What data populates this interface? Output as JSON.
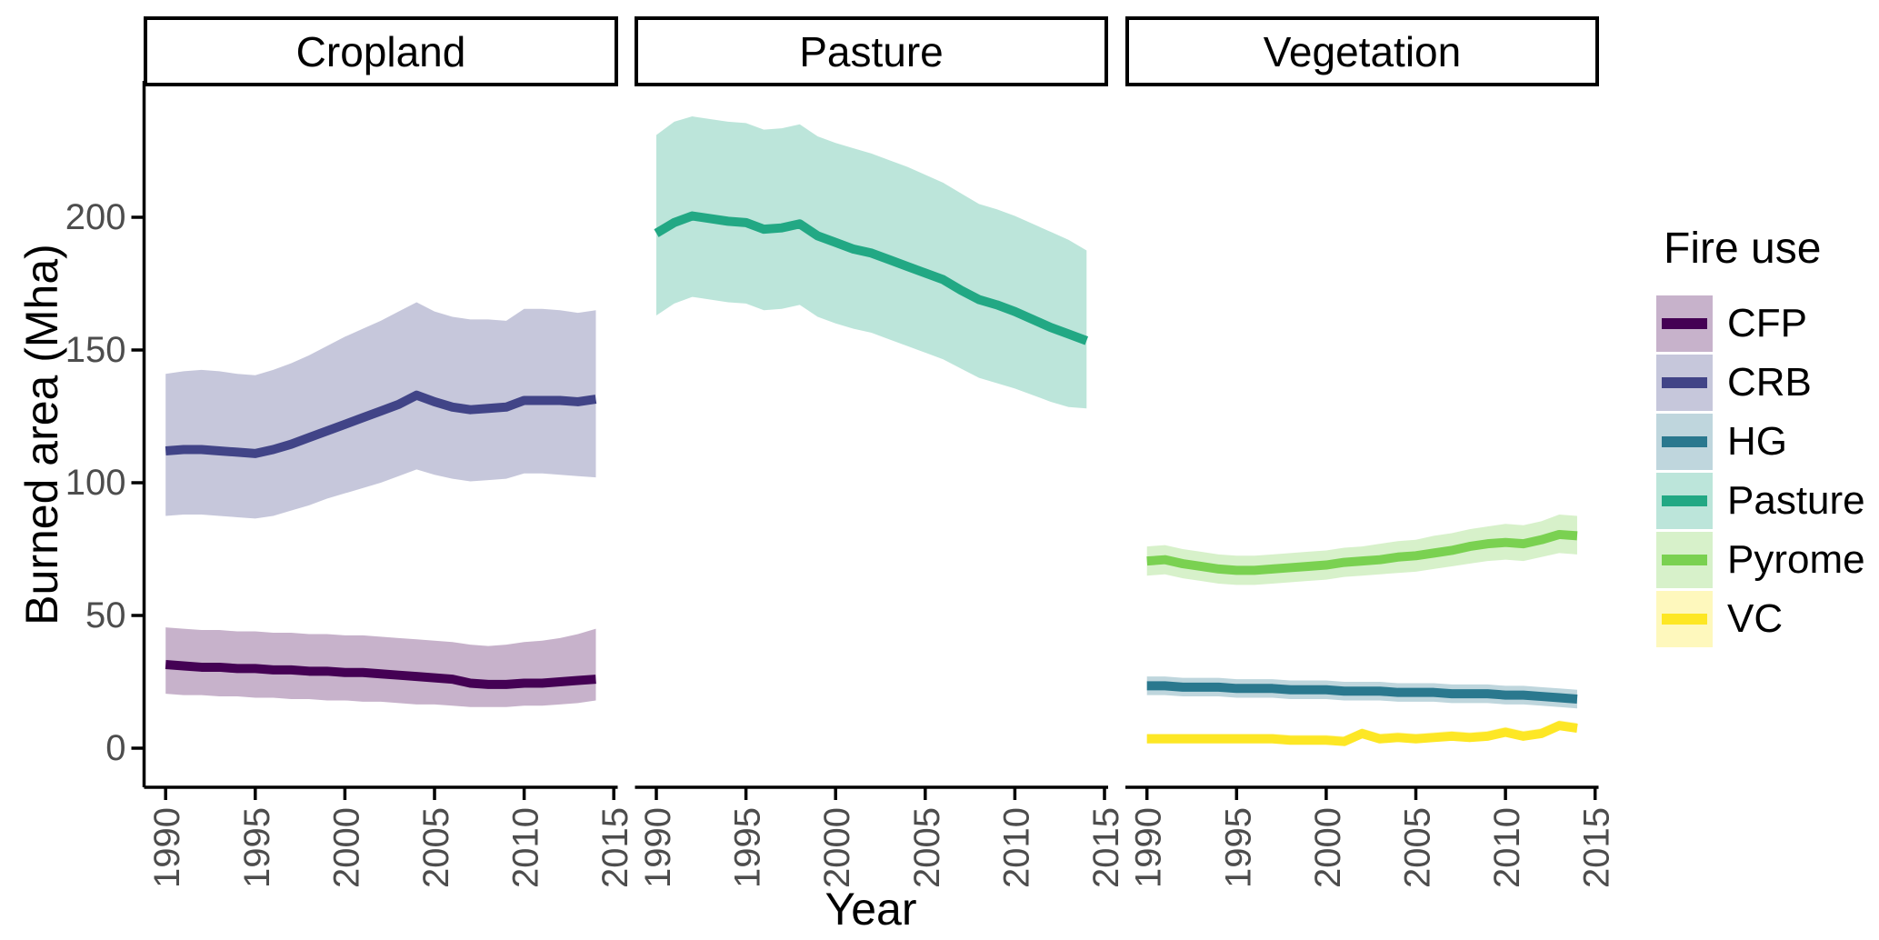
{
  "figure": {
    "y_axis_title": "Burned area (Mha)",
    "x_axis_title": "Year"
  },
  "legend": {
    "title": "Fire use",
    "entries": [
      {
        "label": "CFP",
        "color": "#440154"
      },
      {
        "label": "CRB",
        "color": "#414487"
      },
      {
        "label": "HG",
        "color": "#2a788e"
      },
      {
        "label": "Pasture",
        "color": "#22a884"
      },
      {
        "label": "Pyrome",
        "color": "#7ad151"
      },
      {
        "label": "VC",
        "color": "#fde725"
      }
    ]
  },
  "chart_data": {
    "type": "line",
    "title": "",
    "xlabel": "Year",
    "ylabel": "Burned area (Mha)",
    "legend_title": "Fire use",
    "legend_position": "right",
    "grid": false,
    "band_opacity": 0.3,
    "x": [
      1990,
      1991,
      1992,
      1993,
      1994,
      1995,
      1996,
      1997,
      1998,
      1999,
      2000,
      2001,
      2002,
      2003,
      2004,
      2005,
      2006,
      2007,
      2008,
      2009,
      2010,
      2011,
      2012,
      2013,
      2014
    ],
    "x_ticks": [
      1990,
      1995,
      2000,
      2005,
      2010,
      2015
    ],
    "y_ticks": [
      0,
      50,
      100,
      150,
      200
    ],
    "xlim": [
      1988.8,
      2016.2
    ],
    "ylim": [
      -15,
      250
    ],
    "axis_text_color": "#4d4d4d",
    "facets": [
      {
        "label": "Cropland",
        "series": [
          {
            "name": "CRB",
            "color": "#414487",
            "values": [
              112,
              112.5,
              112.5,
              112,
              111.5,
              111,
              112.5,
              114.5,
              117,
              119.5,
              122,
              124.5,
              127,
              129.5,
              133,
              130.5,
              128.5,
              127.5,
              128,
              128.5,
              131,
              131,
              131,
              130.5,
              131.5
            ],
            "band_hi": [
              141,
              142,
              142.5,
              142,
              141,
              140.5,
              142.5,
              145,
              148,
              151.5,
              155,
              158,
              161,
              164.5,
              168,
              164.5,
              162.5,
              161.5,
              161.5,
              161,
              165.5,
              165.5,
              165,
              164,
              165
            ],
            "band_lo": [
              87.5,
              88,
              88,
              87.5,
              87,
              86.5,
              87.5,
              89.5,
              91.5,
              94,
              96,
              98,
              100,
              102.5,
              105,
              103,
              101.5,
              100.5,
              101,
              101.5,
              103.5,
              103.5,
              103,
              102.5,
              102
            ]
          },
          {
            "name": "CFP",
            "color": "#440154",
            "values": [
              31.5,
              31,
              30.5,
              30.5,
              30,
              30,
              29.5,
              29.5,
              29,
              29,
              28.5,
              28.5,
              28,
              27.5,
              27,
              26.5,
              26,
              24.5,
              24,
              24,
              24.5,
              24.5,
              25,
              25.5,
              26
            ],
            "band_hi": [
              45.5,
              45,
              44.5,
              44.5,
              44,
              44,
              43.5,
              43.5,
              43,
              43,
              42.5,
              42.5,
              42,
              41.5,
              41,
              40.5,
              40,
              39,
              38.5,
              39,
              40,
              40.5,
              41.5,
              43,
              45
            ],
            "band_lo": [
              20.5,
              20,
              20,
              19.5,
              19.5,
              19,
              19,
              18.5,
              18.5,
              18,
              18,
              17.5,
              17.5,
              17,
              16.5,
              16.5,
              16,
              15.5,
              15.5,
              15.5,
              16,
              16,
              16.5,
              17,
              18
            ]
          }
        ]
      },
      {
        "label": "Pasture",
        "series": [
          {
            "name": "Pasture",
            "color": "#22a884",
            "values": [
              194,
              198,
              200.5,
              199.5,
              198.5,
              198,
              195.5,
              196,
              197.5,
              193,
              190.5,
              188,
              186.5,
              184,
              181.5,
              179,
              176.5,
              172.5,
              169,
              167,
              164.5,
              161.5,
              158.5,
              156,
              153.5
            ],
            "band_hi": [
              231,
              236,
              238,
              237,
              236,
              235.5,
              233,
              233.5,
              235,
              230.5,
              228,
              226,
              224,
              221.5,
              219,
              216,
              213,
              209,
              205,
              203,
              200.5,
              197.5,
              194.5,
              191.5,
              187.5
            ],
            "band_lo": [
              163,
              167.5,
              170,
              169,
              168,
              167.5,
              165,
              165.5,
              167,
              162.5,
              160,
              158,
              156.5,
              154,
              151.5,
              149,
              146.5,
              143,
              139.5,
              137.5,
              135.5,
              133,
              130.5,
              128.5,
              128
            ]
          }
        ]
      },
      {
        "label": "Vegetation",
        "series": [
          {
            "name": "Pyrome",
            "color": "#7ad151",
            "values": [
              70.5,
              71,
              69.5,
              68.5,
              67.5,
              67,
              67,
              67.5,
              68,
              68.5,
              69,
              70,
              70.5,
              71,
              72,
              72.5,
              73.5,
              74.5,
              76,
              77,
              77.5,
              77,
              78.5,
              80.5,
              80
            ],
            "band_hi": [
              76,
              76.5,
              75,
              74,
              73,
              72.5,
              72.5,
              73,
              73.5,
              74,
              74.5,
              75.5,
              76,
              77,
              78,
              78.5,
              80,
              81,
              82.5,
              83.5,
              84.5,
              84,
              85.5,
              88,
              87.5
            ],
            "band_lo": [
              65,
              65.5,
              64,
              63,
              62,
              61.5,
              61.5,
              62,
              62.5,
              63,
              63.5,
              64.5,
              65,
              65.5,
              66,
              66.5,
              67.5,
              68.5,
              69.5,
              70.5,
              71,
              70.5,
              72,
              73.5,
              73
            ]
          },
          {
            "name": "HG",
            "color": "#2a788e",
            "values": [
              23.5,
              23.5,
              23,
              23,
              23,
              22.5,
              22.5,
              22.5,
              22,
              22,
              22,
              21.5,
              21.5,
              21.5,
              21,
              21,
              21,
              20.5,
              20.5,
              20.5,
              20,
              20,
              19.5,
              19,
              18.5
            ],
            "band_hi": [
              27,
              27,
              26.5,
              26.5,
              26.5,
              26,
              26,
              26,
              25.5,
              25.5,
              25.5,
              25,
              25,
              25,
              24.5,
              24.5,
              24.5,
              24,
              24,
              24,
              23.5,
              23.5,
              23,
              22.5,
              22
            ],
            "band_lo": [
              20,
              20,
              19.5,
              19.5,
              19.5,
              19,
              19,
              19,
              18.5,
              18.5,
              18.5,
              18,
              18,
              18,
              17.5,
              17.5,
              17.5,
              17,
              17,
              17,
              16.5,
              16.5,
              16,
              15.5,
              15
            ]
          },
          {
            "name": "VC",
            "color": "#fde725",
            "values": [
              3.5,
              3.5,
              3.5,
              3.5,
              3.5,
              3.5,
              3.5,
              3.5,
              3,
              3,
              3,
              2.5,
              5.5,
              3.5,
              4,
              3.5,
              4,
              4.5,
              4,
              4.5,
              6,
              4.5,
              5.5,
              8.5,
              7.5
            ],
            "band_hi": [
              5.5,
              5.5,
              5.5,
              5.5,
              5.5,
              5.5,
              5.5,
              5.5,
              5,
              5,
              5,
              4.5,
              7.5,
              5.5,
              6,
              5.5,
              6,
              6.5,
              6,
              6.5,
              8,
              6.5,
              7.5,
              10.5,
              9.5
            ],
            "band_lo": [
              2,
              2,
              2,
              2,
              2,
              2,
              2,
              2,
              1.5,
              1.5,
              1.5,
              1,
              4,
              2,
              2.5,
              2,
              2.5,
              3,
              2.5,
              3,
              4.5,
              3,
              4,
              7,
              6
            ]
          }
        ]
      }
    ]
  }
}
